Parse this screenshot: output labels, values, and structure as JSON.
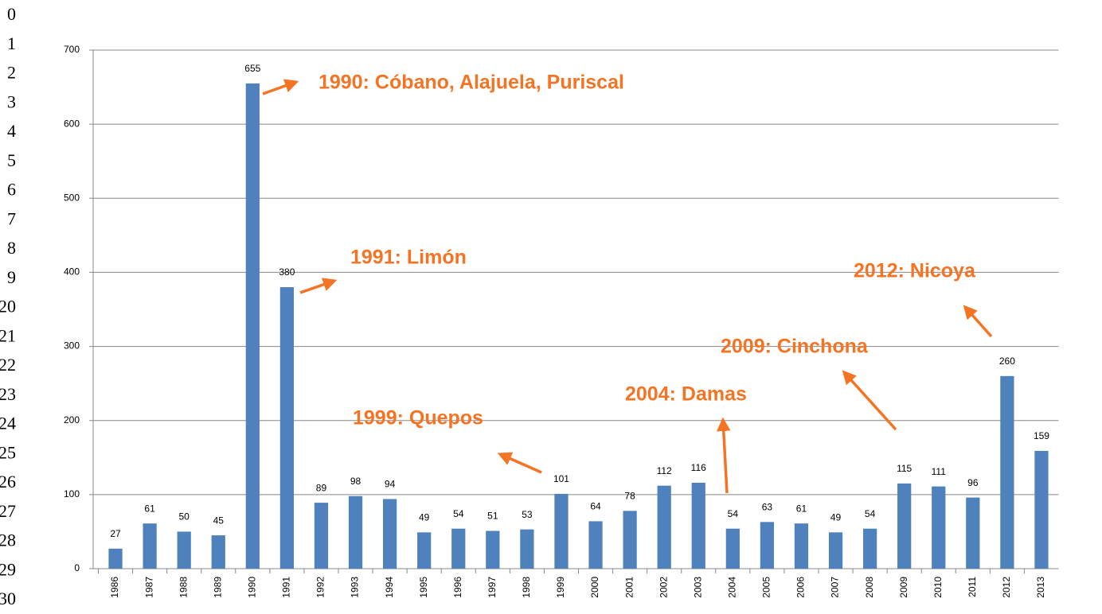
{
  "line_numbers": [
    "0",
    "1",
    "2",
    "3",
    "4",
    "5",
    "6",
    "7",
    "8",
    "9",
    "20",
    "21",
    "22",
    "23",
    "24",
    "25",
    "26",
    "27",
    "28",
    "29",
    "30"
  ],
  "chart_data": {
    "type": "bar",
    "categories": [
      "1986",
      "1987",
      "1988",
      "1989",
      "1990",
      "1991",
      "1992",
      "1993",
      "1994",
      "1995",
      "1996",
      "1997",
      "1998",
      "1999",
      "2000",
      "2001",
      "2002",
      "2003",
      "2004",
      "2005",
      "2006",
      "2007",
      "2008",
      "2009",
      "2010",
      "2011",
      "2012",
      "2013"
    ],
    "values": [
      27,
      61,
      50,
      45,
      655,
      380,
      89,
      98,
      94,
      49,
      54,
      51,
      53,
      101,
      64,
      78,
      112,
      116,
      54,
      63,
      61,
      49,
      54,
      115,
      111,
      96,
      260,
      159
    ],
    "color": "#4f81bd",
    "ylim": [
      0,
      700
    ],
    "yticks": [
      0,
      100,
      200,
      300,
      400,
      500,
      600,
      700
    ],
    "grid": true,
    "annotations": [
      "1990: Cóbano, Alajuela, Puriscal",
      "1991: Limón",
      "2012: Nicoya",
      "2009: Cinchona",
      "2004: Damas",
      "1999: Quepos"
    ],
    "annotation_color": "#f47424"
  }
}
